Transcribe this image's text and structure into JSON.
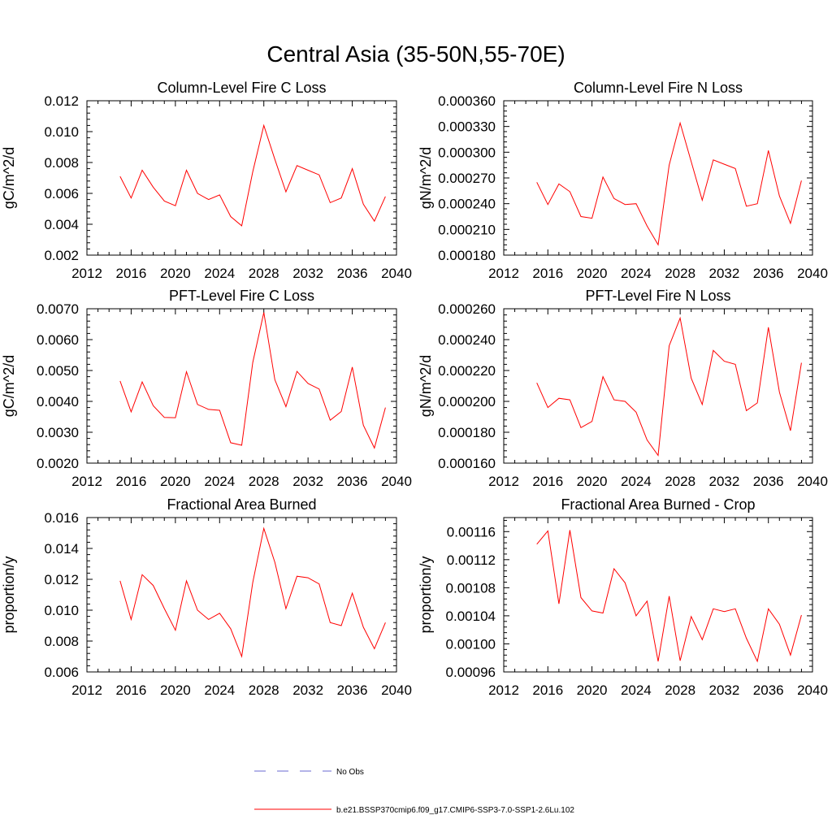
{
  "figure": {
    "title": "Central Asia (35-50N,55-70E)"
  },
  "legend": {
    "entries": [
      {
        "label": "No Obs",
        "color": "#6a6ad0",
        "dash": true
      },
      {
        "label": "b.e21.BSSP370cmip6.f09_g17.CMIP6-SSP3-7.0-SSP1-2.6Lu.102",
        "color": "#ff0000",
        "dash": false
      }
    ]
  },
  "chart_data": [
    {
      "type": "line",
      "title": "Column-Level Fire C Loss",
      "ylabel": "gC/m^2/d",
      "xlim": [
        2012,
        2040
      ],
      "xticks": [
        2012,
        2016,
        2020,
        2024,
        2028,
        2032,
        2036,
        2040
      ],
      "xtick_labels": [
        "2012",
        "2016",
        "2020",
        "2024",
        "2028",
        "2032",
        "2036",
        "2040"
      ],
      "ylim": [
        0.002,
        0.012
      ],
      "yticks": [
        0.002,
        0.004,
        0.006,
        0.008,
        0.01,
        0.012
      ],
      "ytick_labels": [
        "0.002",
        "0.004",
        "0.006",
        "0.008",
        "0.010",
        "0.012"
      ],
      "color": "#ff0000",
      "x": [
        2015,
        2016,
        2017,
        2018,
        2019,
        2020,
        2021,
        2022,
        2023,
        2024,
        2025,
        2026,
        2027,
        2028,
        2029,
        2030,
        2031,
        2032,
        2033,
        2034,
        2035,
        2036,
        2037,
        2038,
        2039
      ],
      "y": [
        0.0071,
        0.0057,
        0.0075,
        0.0064,
        0.0055,
        0.0052,
        0.0075,
        0.006,
        0.0056,
        0.0059,
        0.0045,
        0.0039,
        0.0074,
        0.0104,
        0.0082,
        0.0061,
        0.0078,
        0.0075,
        0.0072,
        0.0054,
        0.0057,
        0.0076,
        0.0053,
        0.0042,
        0.0058
      ]
    },
    {
      "type": "line",
      "title": "Column-Level Fire N Loss",
      "ylabel": "gN/m^2/d",
      "xlim": [
        2012,
        2040
      ],
      "xticks": [
        2012,
        2016,
        2020,
        2024,
        2028,
        2032,
        2036,
        2040
      ],
      "xtick_labels": [
        "2012",
        "2016",
        "2020",
        "2024",
        "2028",
        "2032",
        "2036",
        "2040"
      ],
      "ylim": [
        0.00018,
        0.00036
      ],
      "yticks": [
        0.00018,
        0.00021,
        0.00024,
        0.00027,
        0.0003,
        0.00033,
        0.00036
      ],
      "ytick_labels": [
        "0.000180",
        "0.000210",
        "0.000240",
        "0.000270",
        "0.000300",
        "0.000330",
        "0.000360"
      ],
      "color": "#ff0000",
      "x": [
        2015,
        2016,
        2017,
        2018,
        2019,
        2020,
        2021,
        2022,
        2023,
        2024,
        2025,
        2026,
        2027,
        2028,
        2029,
        2030,
        2031,
        2032,
        2033,
        2034,
        2035,
        2036,
        2037,
        2038,
        2039
      ],
      "y": [
        0.000265,
        0.000239,
        0.000263,
        0.000254,
        0.000225,
        0.000223,
        0.000271,
        0.000246,
        0.000239,
        0.00024,
        0.000214,
        0.000192,
        0.000285,
        0.000334,
        0.000289,
        0.000244,
        0.000291,
        0.000286,
        0.000281,
        0.000237,
        0.00024,
        0.000302,
        0.000249,
        0.000217,
        0.000267
      ]
    },
    {
      "type": "line",
      "title": "PFT-Level Fire C Loss",
      "ylabel": "gC/m^2/d",
      "xlim": [
        2012,
        2040
      ],
      "xticks": [
        2012,
        2016,
        2020,
        2024,
        2028,
        2032,
        2036,
        2040
      ],
      "xtick_labels": [
        "2012",
        "2016",
        "2020",
        "2024",
        "2028",
        "2032",
        "2036",
        "2040"
      ],
      "ylim": [
        0.002,
        0.007
      ],
      "yticks": [
        0.002,
        0.003,
        0.004,
        0.005,
        0.006,
        0.007
      ],
      "ytick_labels": [
        "0.0020",
        "0.0030",
        "0.0040",
        "0.0050",
        "0.0060",
        "0.0070"
      ],
      "color": "#ff0000",
      "x": [
        2015,
        2016,
        2017,
        2018,
        2019,
        2020,
        2021,
        2022,
        2023,
        2024,
        2025,
        2026,
        2027,
        2028,
        2029,
        2030,
        2031,
        2032,
        2033,
        2034,
        2035,
        2036,
        2037,
        2038,
        2039
      ],
      "y": [
        0.00466,
        0.00366,
        0.00463,
        0.00386,
        0.00348,
        0.00347,
        0.00496,
        0.0039,
        0.00374,
        0.00371,
        0.00266,
        0.00258,
        0.00526,
        0.00688,
        0.0047,
        0.00383,
        0.00497,
        0.00458,
        0.0044,
        0.00339,
        0.00367,
        0.00511,
        0.00323,
        0.00249,
        0.0038
      ]
    },
    {
      "type": "line",
      "title": "PFT-Level Fire N Loss",
      "ylabel": "gN/m^2/d",
      "xlim": [
        2012,
        2040
      ],
      "xticks": [
        2012,
        2016,
        2020,
        2024,
        2028,
        2032,
        2036,
        2040
      ],
      "xtick_labels": [
        "2012",
        "2016",
        "2020",
        "2024",
        "2028",
        "2032",
        "2036",
        "2040"
      ],
      "ylim": [
        0.00016,
        0.00026
      ],
      "yticks": [
        0.00016,
        0.00018,
        0.0002,
        0.00022,
        0.00024,
        0.00026
      ],
      "ytick_labels": [
        "0.000160",
        "0.000180",
        "0.000200",
        "0.000220",
        "0.000240",
        "0.000260"
      ],
      "color": "#ff0000",
      "x": [
        2015,
        2016,
        2017,
        2018,
        2019,
        2020,
        2021,
        2022,
        2023,
        2024,
        2025,
        2026,
        2027,
        2028,
        2029,
        2030,
        2031,
        2032,
        2033,
        2034,
        2035,
        2036,
        2037,
        2038,
        2039
      ],
      "y": [
        0.000212,
        0.000196,
        0.000202,
        0.000201,
        0.000183,
        0.000187,
        0.000216,
        0.000201,
        0.0002,
        0.000193,
        0.000175,
        0.000165,
        0.000236,
        0.000254,
        0.000215,
        0.000198,
        0.000233,
        0.000226,
        0.000224,
        0.000194,
        0.000199,
        0.000248,
        0.000206,
        0.000181,
        0.000225
      ]
    },
    {
      "type": "line",
      "title": "Fractional Area Burned",
      "ylabel": "proportion/y",
      "xlim": [
        2012,
        2040
      ],
      "xticks": [
        2012,
        2016,
        2020,
        2024,
        2028,
        2032,
        2036,
        2040
      ],
      "xtick_labels": [
        "2012",
        "2016",
        "2020",
        "2024",
        "2028",
        "2032",
        "2036",
        "2040"
      ],
      "ylim": [
        0.006,
        0.016
      ],
      "yticks": [
        0.006,
        0.008,
        0.01,
        0.012,
        0.014,
        0.016
      ],
      "ytick_labels": [
        "0.006",
        "0.008",
        "0.010",
        "0.012",
        "0.014",
        "0.016"
      ],
      "color": "#ff0000",
      "x": [
        2015,
        2016,
        2017,
        2018,
        2019,
        2020,
        2021,
        2022,
        2023,
        2024,
        2025,
        2026,
        2027,
        2028,
        2029,
        2030,
        2031,
        2032,
        2033,
        2034,
        2035,
        2036,
        2037,
        2038,
        2039
      ],
      "y": [
        0.0119,
        0.0094,
        0.0123,
        0.0116,
        0.0101,
        0.0087,
        0.0119,
        0.01,
        0.0094,
        0.0098,
        0.0088,
        0.007,
        0.0118,
        0.0153,
        0.0131,
        0.0101,
        0.0122,
        0.0121,
        0.0117,
        0.0092,
        0.009,
        0.0111,
        0.0089,
        0.0075,
        0.0092
      ]
    },
    {
      "type": "line",
      "title": "Fractional Area Burned - Crop",
      "ylabel": "proportion/y",
      "xlim": [
        2012,
        2040
      ],
      "xticks": [
        2012,
        2016,
        2020,
        2024,
        2028,
        2032,
        2036,
        2040
      ],
      "xtick_labels": [
        "2012",
        "2016",
        "2020",
        "2024",
        "2028",
        "2032",
        "2036",
        "2040"
      ],
      "ylim": [
        0.00096,
        0.00118
      ],
      "yticks": [
        0.00096,
        0.001,
        0.00104,
        0.00108,
        0.00112,
        0.00116
      ],
      "ytick_labels": [
        "0.00096",
        "0.00100",
        "0.00104",
        "0.00108",
        "0.00112",
        "0.00116"
      ],
      "color": "#ff0000",
      "x": [
        2015,
        2016,
        2017,
        2018,
        2019,
        2020,
        2021,
        2022,
        2023,
        2024,
        2025,
        2026,
        2027,
        2028,
        2029,
        2030,
        2031,
        2032,
        2033,
        2034,
        2035,
        2036,
        2037,
        2038,
        2039
      ],
      "y": [
        0.001142,
        0.001161,
        0.001057,
        0.001162,
        0.001066,
        0.001047,
        0.001044,
        0.001107,
        0.001087,
        0.00104,
        0.001061,
        0.000975,
        0.001068,
        0.000976,
        0.001039,
        0.001006,
        0.00105,
        0.001046,
        0.00105,
        0.001008,
        0.000975,
        0.00105,
        0.001028,
        0.000984,
        0.001041
      ]
    }
  ]
}
